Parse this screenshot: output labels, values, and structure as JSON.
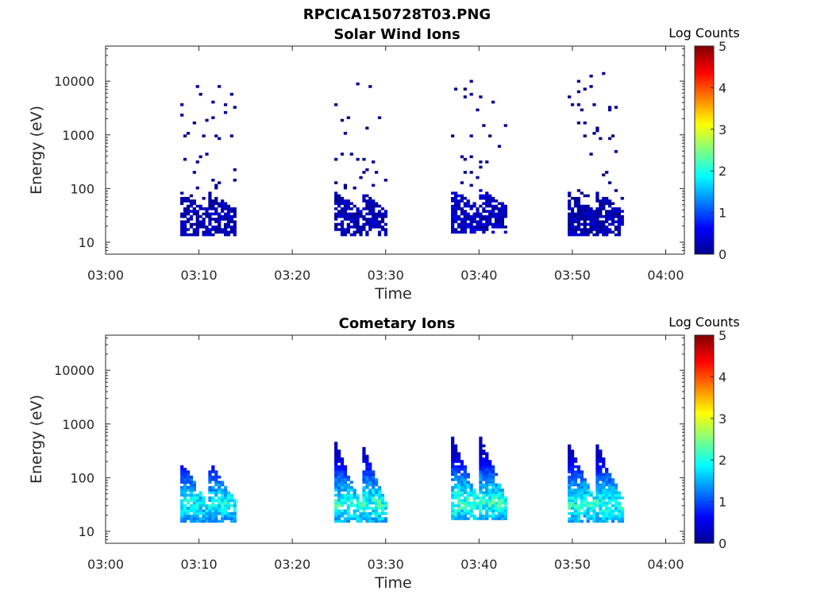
{
  "figure_title": "RPCICA150728T03.PNG",
  "chart_data": [
    {
      "type": "heatmap",
      "title": "Solar Wind Ions",
      "xlabel": "Time",
      "ylabel": "Energy (eV)",
      "colorbar_label": "Log Counts",
      "colorbar_ticks": [
        "0",
        "1",
        "2",
        "3",
        "4",
        "5"
      ],
      "clim": [
        0,
        5
      ],
      "colormap": "jet",
      "x_ticks": [
        "03:00",
        "03:10",
        "03:20",
        "03:30",
        "03:40",
        "03:50",
        "04:00"
      ],
      "y_ticks": [
        "10",
        "100",
        "1000",
        "10000"
      ],
      "y_scale": "log",
      "x_range_minutes": [
        0,
        62
      ],
      "y_range_ev": [
        6,
        45000
      ],
      "bursts": [
        {
          "start_min": 8.0,
          "end_min": 14.0,
          "core_energy_ev": 35,
          "sparse_max_ev": 9800,
          "max_log_counts": 0.4
        },
        {
          "start_min": 24.5,
          "end_min": 30.0,
          "core_energy_ev": 35,
          "sparse_max_ev": 9000,
          "max_log_counts": 0.4
        },
        {
          "start_min": 37.0,
          "end_min": 43.0,
          "core_energy_ev": 40,
          "sparse_max_ev": 11000,
          "max_log_counts": 0.5
        },
        {
          "start_min": 49.5,
          "end_min": 55.5,
          "core_energy_ev": 35,
          "sparse_max_ev": 14000,
          "max_log_counts": 0.4
        }
      ]
    },
    {
      "type": "heatmap",
      "title": "Cometary Ions",
      "xlabel": "Time",
      "ylabel": "Energy (eV)",
      "colorbar_label": "Log Counts",
      "colorbar_ticks": [
        "0",
        "1",
        "2",
        "3",
        "4",
        "5"
      ],
      "clim": [
        0,
        5
      ],
      "colormap": "jet",
      "x_ticks": [
        "03:00",
        "03:10",
        "03:20",
        "03:30",
        "03:40",
        "03:50",
        "04:00"
      ],
      "y_ticks": [
        "10",
        "100",
        "1000",
        "10000"
      ],
      "y_scale": "log",
      "x_range_minutes": [
        0,
        62
      ],
      "y_range_ev": [
        6,
        45000
      ],
      "bursts": [
        {
          "start_min": 8.0,
          "end_min": 14.0,
          "core_energy_ev": 32,
          "peak_energy_ev": 200,
          "max_log_counts": 2.0
        },
        {
          "start_min": 24.5,
          "end_min": 30.0,
          "core_energy_ev": 32,
          "peak_energy_ev": 450,
          "max_log_counts": 2.2
        },
        {
          "start_min": 37.0,
          "end_min": 43.0,
          "core_energy_ev": 35,
          "peak_energy_ev": 550,
          "max_log_counts": 2.3
        },
        {
          "start_min": 49.5,
          "end_min": 55.5,
          "core_energy_ev": 32,
          "peak_energy_ev": 420,
          "max_log_counts": 2.2
        }
      ]
    }
  ]
}
